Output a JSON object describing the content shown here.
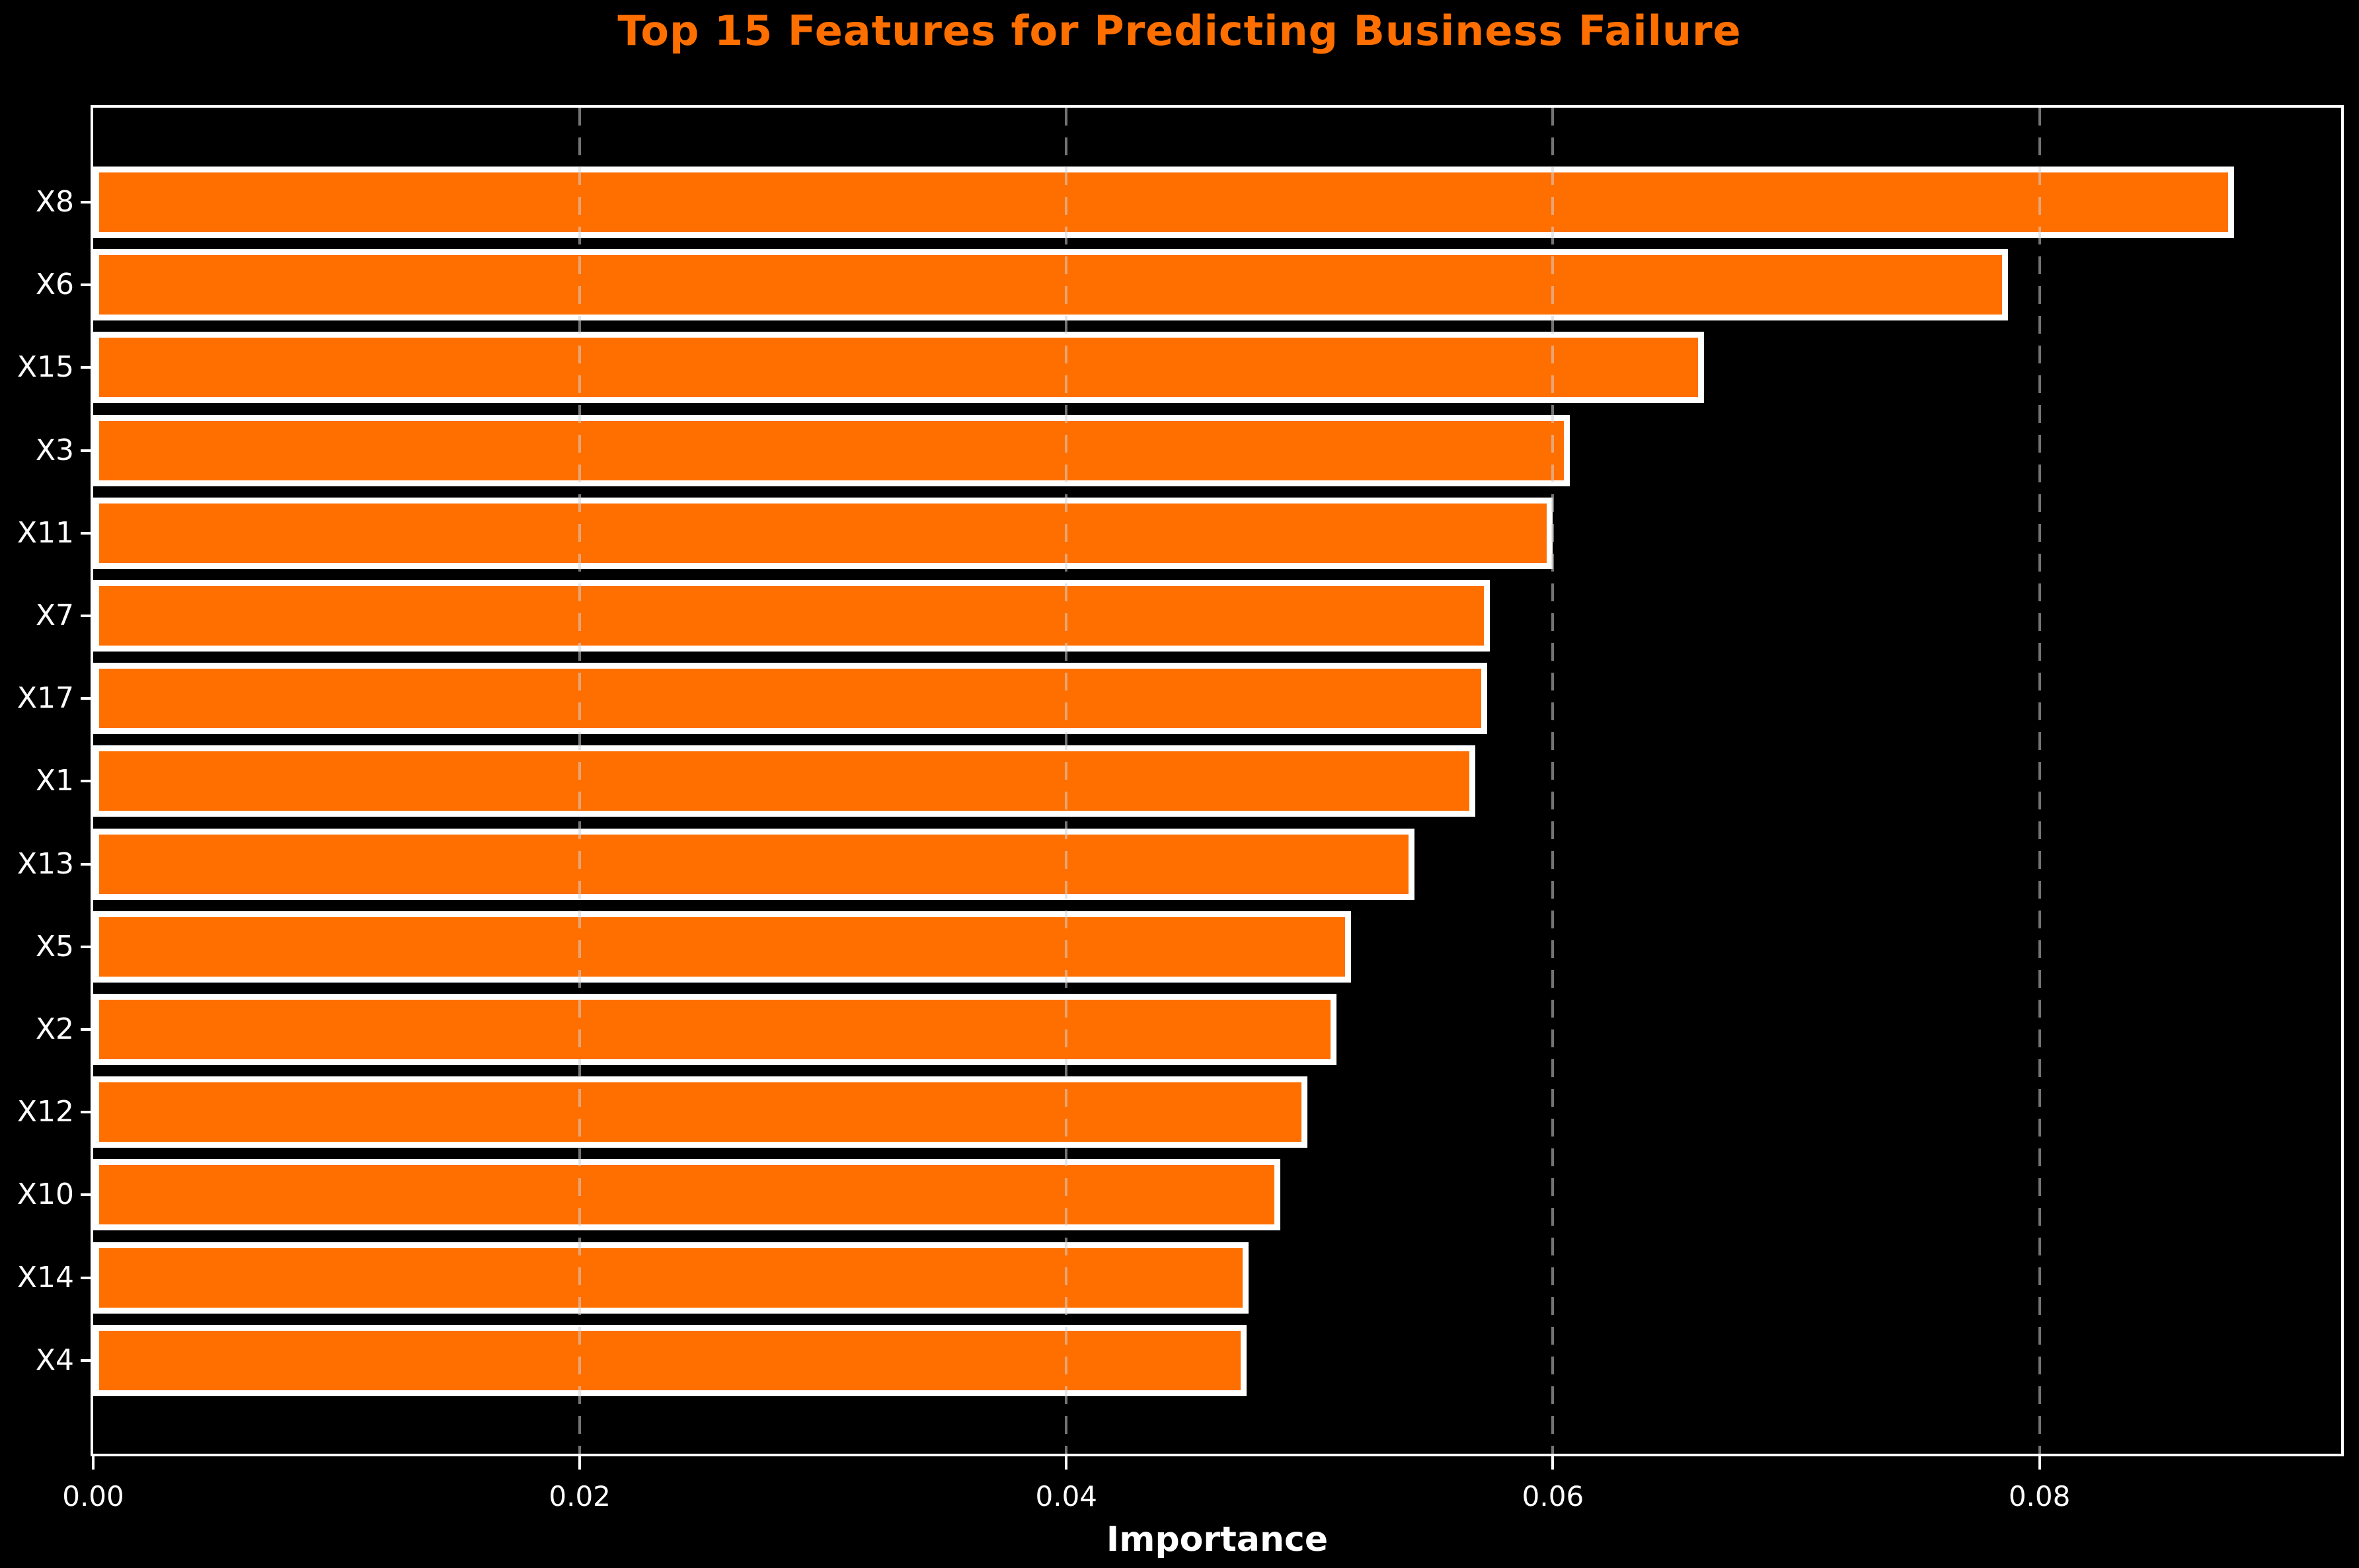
{
  "chart": {
    "title": "Top 15 Features for Predicting Business Failure",
    "xlabel": "Importance"
  },
  "style": {
    "background_color": "#000000",
    "title_color": "#FF6F00",
    "bar_color": "#FF6F00",
    "bar_edge_color": "#FFFFFF",
    "axis_text_color": "#FFFFFF",
    "grid_color": "rgba(210,210,210,0.55)"
  },
  "chart_data": {
    "type": "bar",
    "orientation": "horizontal",
    "title": "Top 15 Features for Predicting Business Failure",
    "xlabel": "Importance",
    "ylabel": "",
    "categories": [
      "X8",
      "X6",
      "X15",
      "X3",
      "X11",
      "X7",
      "X17",
      "X1",
      "X13",
      "X5",
      "X2",
      "X12",
      "X10",
      "X14",
      "X4"
    ],
    "values": [
      0.088,
      0.0787,
      0.0662,
      0.0607,
      0.06,
      0.0574,
      0.0573,
      0.0568,
      0.0543,
      0.0517,
      0.0511,
      0.0499,
      0.0488,
      0.0475,
      0.0474
    ],
    "xlim": [
      0,
      0.0924
    ],
    "x_ticks": [
      0.0,
      0.02,
      0.04,
      0.06,
      0.08
    ],
    "x_tick_labels": [
      "0.00",
      "0.02",
      "0.04",
      "0.06",
      "0.08"
    ],
    "grid": "vertical-dashed-over-bars",
    "legend": false
  }
}
